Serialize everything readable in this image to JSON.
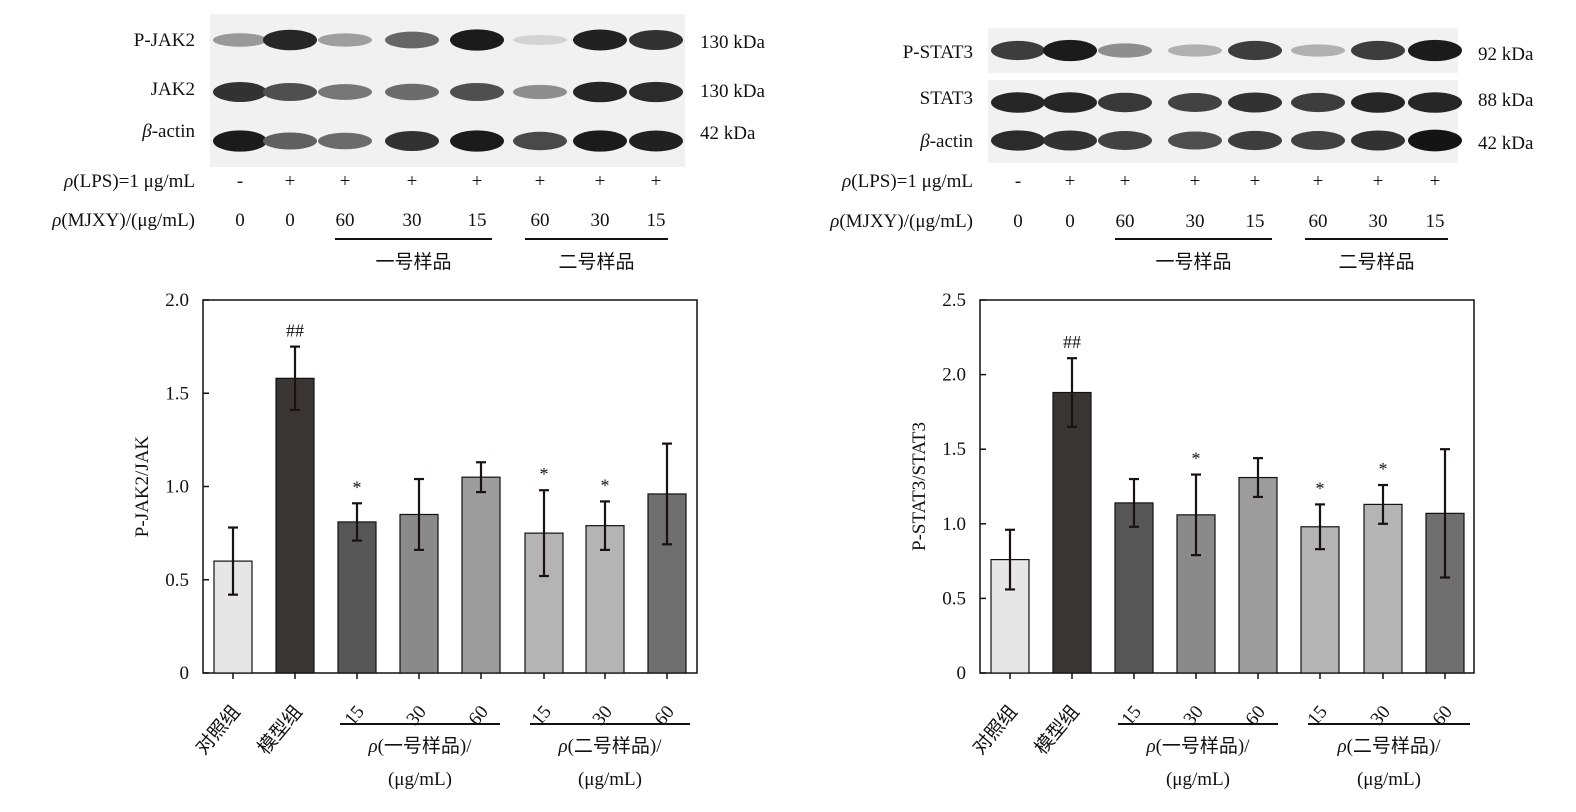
{
  "panels": [
    {
      "id": "jak",
      "blot": {
        "rows": [
          {
            "label": "P-JAK2",
            "kda": "130 kDa",
            "intensity": [
              0.4,
              0.9,
              0.38,
              0.62,
              0.95,
              0.15,
              0.92,
              0.85
            ]
          },
          {
            "label": "JAK2",
            "kda": "130 kDa",
            "intensity": [
              0.85,
              0.72,
              0.55,
              0.6,
              0.72,
              0.45,
              0.9,
              0.88
            ]
          },
          {
            "label": "β-actin",
            "kda": "42 kDa",
            "intensity": [
              0.95,
              0.65,
              0.6,
              0.85,
              0.95,
              0.75,
              0.95,
              0.92
            ]
          }
        ],
        "lps_label": "ρ(LPS)=1 μg/mL",
        "lps": [
          "-",
          "+",
          "+",
          "+",
          "+",
          "+",
          "+",
          "+"
        ],
        "dose_label": "ρ(MJXY)/(μg/mL)",
        "doses": [
          "0",
          "0",
          "60",
          "30",
          "15",
          "60",
          "30",
          "15"
        ],
        "groups": [
          "一号样品",
          "二号样品"
        ]
      },
      "chart_data": {
        "type": "bar",
        "ylabel": "P-JAK2/JAK",
        "ylim": [
          0,
          2.0
        ],
        "yticks": [
          "0",
          "0.5",
          "1.0",
          "1.5",
          "2.0"
        ],
        "categories": [
          "对照组",
          "模型组",
          "15",
          "30",
          "60",
          "15",
          "30",
          "60"
        ],
        "values": [
          0.6,
          1.58,
          0.81,
          0.85,
          1.05,
          0.75,
          0.79,
          0.96
        ],
        "errors": [
          0.18,
          0.17,
          0.1,
          0.19,
          0.08,
          0.23,
          0.13,
          0.27
        ],
        "significance": [
          "",
          "##",
          "*",
          "",
          "",
          "*",
          "*",
          ""
        ],
        "colors": [
          "#e6e6e6",
          "#3a3535",
          "#575757",
          "#8a8a8a",
          "#9c9c9c",
          "#b4b4b4",
          "#b4b4b4",
          "#6f6f6f"
        ],
        "group_labels": [
          {
            "line1": "ρ(一号样品)/",
            "line2": "(μg/mL)"
          },
          {
            "line1": "ρ(二号样品)/",
            "line2": "(μg/mL)"
          }
        ]
      }
    },
    {
      "id": "stat",
      "blot": {
        "rows": [
          {
            "label": "P-STAT3",
            "kda": "92 kDa",
            "intensity": [
              0.8,
              0.95,
              0.45,
              0.3,
              0.8,
              0.3,
              0.8,
              0.95
            ]
          },
          {
            "label": "STAT3",
            "kda": "88 kDa",
            "intensity": [
              0.9,
              0.9,
              0.82,
              0.78,
              0.85,
              0.8,
              0.9,
              0.9
            ]
          },
          {
            "label": "β-actin",
            "kda": "42 kDa",
            "intensity": [
              0.88,
              0.85,
              0.78,
              0.72,
              0.8,
              0.78,
              0.85,
              0.98
            ]
          }
        ],
        "lps_label": "ρ(LPS)=1 μg/mL",
        "lps": [
          "-",
          "+",
          "+",
          "+",
          "+",
          "+",
          "+",
          "+"
        ],
        "dose_label": "ρ(MJXY)/(μg/mL)",
        "doses": [
          "0",
          "0",
          "60",
          "30",
          "15",
          "60",
          "30",
          "15"
        ],
        "groups": [
          "一号样品",
          "二号样品"
        ]
      },
      "chart_data": {
        "type": "bar",
        "ylabel": "P-STAT3/STAT3",
        "ylim": [
          0,
          2.5
        ],
        "yticks": [
          "0",
          "0.5",
          "1.0",
          "1.5",
          "2.0",
          "2.5"
        ],
        "categories": [
          "对照组",
          "模型组",
          "15",
          "30",
          "60",
          "15",
          "30",
          "60"
        ],
        "values": [
          0.76,
          1.88,
          1.14,
          1.06,
          1.31,
          0.98,
          1.13,
          1.07
        ],
        "errors": [
          0.2,
          0.23,
          0.16,
          0.27,
          0.13,
          0.15,
          0.13,
          0.43
        ],
        "significance": [
          "",
          "##",
          "",
          "*",
          "",
          "*",
          "*",
          ""
        ],
        "colors": [
          "#e6e6e6",
          "#3a3535",
          "#575757",
          "#8a8a8a",
          "#9c9c9c",
          "#b4b4b4",
          "#b4b4b4",
          "#6f6f6f"
        ],
        "group_labels": [
          {
            "line1": "ρ(一号样品)/",
            "line2": "(μg/mL)"
          },
          {
            "line1": "ρ(二号样品)/",
            "line2": "(μg/mL)"
          }
        ]
      }
    }
  ]
}
